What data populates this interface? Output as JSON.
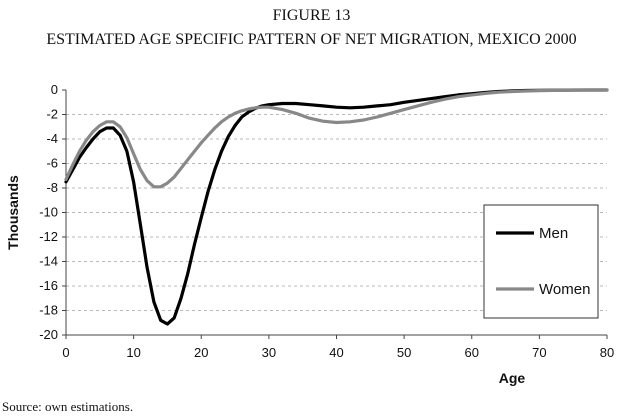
{
  "figure": {
    "number": "FIGURE 13",
    "title": "ESTIMATED AGE SPECIFIC PATTERN OF NET MIGRATION, MEXICO 2000",
    "source": "Source: own estimations."
  },
  "chart_data": {
    "type": "line",
    "xlabel": "Age",
    "ylabel": "Thousands",
    "xlim": [
      0,
      80
    ],
    "ylim": [
      -20,
      0
    ],
    "xticks": [
      0,
      10,
      20,
      30,
      40,
      50,
      60,
      70,
      80
    ],
    "yticks": [
      0,
      -2,
      -4,
      -6,
      -8,
      -10,
      -12,
      -14,
      -16,
      -18,
      -20
    ],
    "grid": true,
    "legend_position": "right",
    "colors": {
      "Men": "#000000",
      "Women": "#888888",
      "grid": "#b8b8b8",
      "axis": "#444444"
    },
    "series": [
      {
        "name": "Men",
        "x": [
          0,
          1,
          2,
          3,
          4,
          5,
          6,
          7,
          8,
          9,
          10,
          11,
          12,
          13,
          14,
          15,
          16,
          17,
          18,
          19,
          20,
          21,
          22,
          23,
          24,
          25,
          26,
          27,
          28,
          29,
          30,
          32,
          34,
          36,
          38,
          40,
          42,
          44,
          46,
          48,
          50,
          52,
          54,
          56,
          58,
          60,
          62,
          64,
          66,
          68,
          70,
          72,
          74,
          76,
          78,
          80
        ],
        "y": [
          -7.5,
          -6.5,
          -5.5,
          -4.7,
          -4.0,
          -3.4,
          -3.1,
          -3.1,
          -3.7,
          -5.0,
          -7.5,
          -11.0,
          -14.5,
          -17.3,
          -18.8,
          -19.1,
          -18.6,
          -17.0,
          -15.0,
          -12.6,
          -10.4,
          -8.3,
          -6.5,
          -5.0,
          -3.8,
          -2.9,
          -2.2,
          -1.8,
          -1.5,
          -1.3,
          -1.2,
          -1.1,
          -1.1,
          -1.2,
          -1.3,
          -1.4,
          -1.45,
          -1.4,
          -1.3,
          -1.2,
          -1.0,
          -0.85,
          -0.7,
          -0.55,
          -0.4,
          -0.3,
          -0.2,
          -0.12,
          -0.07,
          -0.04,
          -0.03,
          -0.02,
          -0.01,
          0,
          0,
          0
        ]
      },
      {
        "name": "Women",
        "x": [
          0,
          1,
          2,
          3,
          4,
          5,
          6,
          7,
          8,
          9,
          10,
          11,
          12,
          13,
          14,
          15,
          16,
          17,
          18,
          19,
          20,
          21,
          22,
          23,
          24,
          25,
          26,
          27,
          28,
          29,
          30,
          32,
          34,
          36,
          38,
          40,
          42,
          44,
          46,
          48,
          50,
          52,
          54,
          56,
          58,
          60,
          62,
          64,
          66,
          68,
          70,
          72,
          74,
          76,
          78,
          80
        ],
        "y": [
          -7.3,
          -6.1,
          -5.0,
          -4.1,
          -3.4,
          -2.9,
          -2.6,
          -2.6,
          -3.0,
          -3.9,
          -5.2,
          -6.5,
          -7.4,
          -7.9,
          -7.9,
          -7.6,
          -7.1,
          -6.4,
          -5.7,
          -5.0,
          -4.3,
          -3.7,
          -3.1,
          -2.6,
          -2.2,
          -1.9,
          -1.7,
          -1.55,
          -1.45,
          -1.4,
          -1.4,
          -1.6,
          -1.9,
          -2.3,
          -2.55,
          -2.65,
          -2.6,
          -2.45,
          -2.2,
          -1.9,
          -1.6,
          -1.3,
          -1.0,
          -0.75,
          -0.55,
          -0.4,
          -0.28,
          -0.18,
          -0.12,
          -0.08,
          -0.05,
          -0.03,
          -0.02,
          -0.01,
          0,
          0
        ]
      }
    ]
  }
}
